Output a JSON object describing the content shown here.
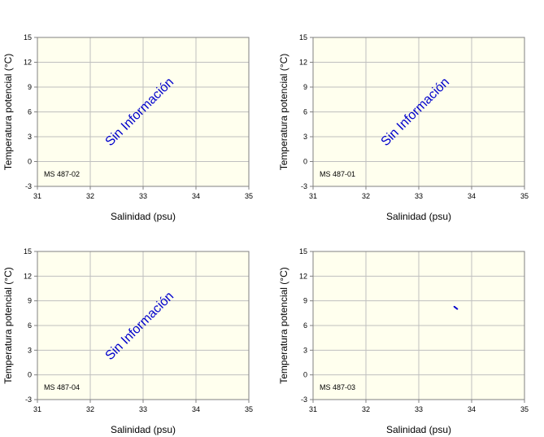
{
  "colors": {
    "plot_bg": "#ffffee",
    "grid": "#bfbfbf",
    "frame": "#808080",
    "series": "#0000cc"
  },
  "chart_data": [
    {
      "type": "scatter",
      "station": "MS 487-02",
      "xlabel": "Salinidad (psu)",
      "ylabel": "Temperatura potencial (°C)",
      "xlim": [
        31,
        35
      ],
      "ylim": [
        -3,
        15
      ],
      "xticks": [
        "31",
        "32",
        "33",
        "34",
        "35"
      ],
      "yticks": [
        "-3",
        "0",
        "3",
        "6",
        "9",
        "12",
        "15"
      ],
      "grid": true,
      "annotation": "Sin Información",
      "points": []
    },
    {
      "type": "scatter",
      "station": "MS 487-01",
      "xlabel": "Salinidad (psu)",
      "ylabel": "Temperatura potencial (°C)",
      "xlim": [
        31,
        35
      ],
      "ylim": [
        -3,
        15
      ],
      "xticks": [
        "31",
        "32",
        "33",
        "34",
        "35"
      ],
      "yticks": [
        "-3",
        "0",
        "3",
        "6",
        "9",
        "12",
        "15"
      ],
      "grid": true,
      "annotation": "Sin Información",
      "points": []
    },
    {
      "type": "scatter",
      "station": "MS 487-04",
      "xlabel": "Salinidad (psu)",
      "ylabel": "Temperatura potencial (°C)",
      "xlim": [
        31,
        35
      ],
      "ylim": [
        -3,
        15
      ],
      "xticks": [
        "31",
        "32",
        "33",
        "34",
        "35"
      ],
      "yticks": [
        "-3",
        "0",
        "3",
        "6",
        "9",
        "12",
        "15"
      ],
      "grid": true,
      "annotation": "Sin Información",
      "points": []
    },
    {
      "type": "scatter",
      "station": "MS 487-03",
      "xlabel": "Salinidad (psu)",
      "ylabel": "Temperatura potencial (°C)",
      "xlim": [
        31,
        35
      ],
      "ylim": [
        -3,
        15
      ],
      "xticks": [
        "31",
        "32",
        "33",
        "34",
        "35"
      ],
      "yticks": [
        "-3",
        "0",
        "3",
        "6",
        "9",
        "12",
        "15"
      ],
      "grid": true,
      "annotation": "",
      "points": [
        {
          "x": 33.67,
          "y": 8.3
        },
        {
          "x": 33.69,
          "y": 8.2
        },
        {
          "x": 33.71,
          "y": 8.1
        },
        {
          "x": 33.73,
          "y": 8.0
        }
      ]
    }
  ]
}
